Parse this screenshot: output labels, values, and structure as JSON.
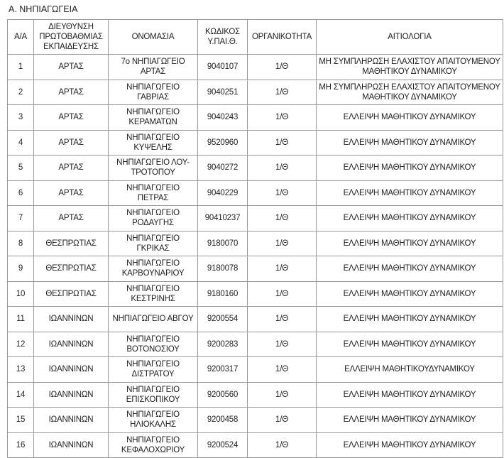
{
  "section_title": "Α. ΝΗΠΙΑΓΩΓΕΙΑ",
  "columns": [
    "Α/Α",
    "ΔΙΕΥΘΥΝΣΗ ΠΡΩΤΟΒΑΘΜΙΑΣ ΕΚΠΑΙΔΕΥΣΗΣ",
    "ΟΝΟΜΑΣΙΑ",
    "ΚΩΔΙΚΟΣ Υ.ΠΑΙ.Θ.",
    "ΟΡΓΑΝΙΚΟΤΗΤΑ",
    "ΑΙΤΙΟΛΟΓΙΑ"
  ],
  "rows": [
    [
      "1",
      "ΑΡΤΑΣ",
      "7ο ΝΗΠΙΑΓΩΓΕΙΟ ΑΡΤΑΣ",
      "9040107",
      "1/Θ",
      "ΜΗ ΣΥΜΠΛΗΡΩΣΗ ΕΛΑΧΙΣΤΟΥ ΑΠΑΙΤΟΥΜΕΝΟΥ ΜΑΘΗΤΙΚΟΥ ΔΥΝΑΜΙΚΟΥ"
    ],
    [
      "2",
      "ΑΡΤΑΣ",
      "ΝΗΠΙΑΓΩΓΕΙΟ ΓΑΒΡΙΑΣ",
      "9040251",
      "1/Θ",
      "ΜΗ ΣΥΜΠΛΗΡΩΣΗ ΕΛΑΧΙΣΤΟΥ ΑΠΑΙΤΟΥΜΕΝΟΥ ΜΑΘΗΤΙΚΟΥ ΔΥΝΑΜΙΚΟΥ"
    ],
    [
      "3",
      "ΑΡΤΑΣ",
      "ΝΗΠΙΑΓΩΓΕΙΟ ΚΕΡΑΜΑΤΩΝ",
      "9040243",
      "1/Θ",
      "ΕΛΛΕΙΨΗ ΜΑΘΗΤΙΚΟΥ ΔΥΝΑΜΙΚΟΥ"
    ],
    [
      "4",
      "ΑΡΤΑΣ",
      "ΝΗΠΙΑΓΩΓΕΙΟ ΚΥΨΕΛΗΣ",
      "9520960",
      "1/Θ",
      "ΕΛΛΕΙΨΗ ΜΑΘΗΤΙΚΟΥ ΔΥΝΑΜΙΚΟΥ"
    ],
    [
      "5",
      "ΑΡΤΑΣ",
      "ΝΗΠΙΑΓΩΓΕΙΟ ΛΟΥ-ΤΡΟΤΟΠΟΥ",
      "9040272",
      "1/Θ",
      "ΕΛΛΕΙΨΗ ΜΑΘΗΤΙΚΟΥ ΔΥΝΑΜΙΚΟΥ"
    ],
    [
      "6",
      "ΑΡΤΑΣ",
      "ΝΗΠΙΑΓΩΓΕΙΟ ΠΕΤΡΑΣ",
      "9040229",
      "1/Θ",
      "ΕΛΛΕΙΨΗ ΜΑΘΗΤΙΚΟΥ ΔΥΝΑΜΙΚΟΥ"
    ],
    [
      "7",
      "ΑΡΤΑΣ",
      "ΝΗΠΙΑΓΩΓΕΙΟ ΡΟΔΑΥΓΗΣ",
      "90410237",
      "1/Θ",
      "ΕΛΛΕΙΨΗ ΜΑΘΗΤΙΚΟΥ ΔΥΝΑΜΙΚΟΥ"
    ],
    [
      "8",
      "ΘΕΣΠΡΩΤΙΑΣ",
      "ΝΗΠΙΑΓΩΓΕΙΟ ΓΚΡΙΚΑΣ",
      "9180070",
      "1/Θ",
      "ΕΛΛΕΙΨΗ ΜΑΘΗΤΙΚΟΥ ΔΥΝΑΜΙΚΟΥ"
    ],
    [
      "9",
      "ΘΕΣΠΡΩΤΙΑΣ",
      "ΝΗΠΙΑΓΩΓΕΙΟ ΚΑΡΒΟΥΝΑΡΙΟΥ",
      "9180078",
      "1/Θ",
      "ΕΛΛΕΙΨΗ ΜΑΘΗΤΙΚΟΥ ΔΥΝΑΜΙΚΟΥ"
    ],
    [
      "10",
      "ΘΕΣΠΡΩΤΙΑΣ",
      "ΝΗΠΙΑΓΩΓΕΙΟ ΚΕΣΤΡΙΝΗΣ",
      "9180160",
      "1/Θ",
      "ΕΛΛΕΙΨΗ ΜΑΘΗΤΙΚΟΥ ΔΥΝΑΜΙΚΟΥ"
    ],
    [
      "11",
      "ΙΩΑΝΝΙΝΩΝ",
      "ΝΗΠΙΑΓΩΓΕΙΟ ΑΒΓΟΥ",
      "9200554",
      "1/Θ",
      "ΕΛΛΕΙΨΗ ΜΑΘΗΤΙΚΟΥ ΔΥΝΑΜΙΚΟΥ"
    ],
    [
      "12",
      "ΙΩΑΝΝΙΝΩΝ",
      "ΝΗΠΙΑΓΩΓΕΙΟ ΒΟΤΟΝΟΣΙΟΥ",
      "9200283",
      "1/Θ",
      "ΕΛΛΕΙΨΗ ΜΑΘΗΤΙΚΟΥ ΔΥΝΑΜΙΚΟΥ"
    ],
    [
      "13",
      "ΙΩΑΝΝΙΝΩΝ",
      "ΝΗΠΙΑΓΩΓΕΙΟ ΔΙΣΤΡΑΤΟΥ",
      "9200317",
      "1/Θ",
      "ΕΛΛΕΙΨΗ ΜΑΘΗΤΙΚΟΥΔΥΝΑΜΙΚΟΥ"
    ],
    [
      "14",
      "ΙΩΑΝΝΙΝΩΝ",
      "ΝΗΠΙΑΓΩΓΕΙΟ ΕΠΙΣΚΟΠΙΚΟΥ",
      "9200560",
      "1/Θ",
      "ΕΛΛΕΙΨΗ ΜΑΘΗΤΙΚΟΥ ΔΥΝΑΜΙΚΟΥ"
    ],
    [
      "15",
      "ΙΩΑΝΝΙΝΩΝ",
      "ΝΗΠΙΑΓΩΓΕΙΟ ΗΛΙΟΚΑΛΗΣ",
      "9200458",
      "1/Θ",
      "ΕΛΛΕΙΨΗ ΜΑΘΗΤΙΚΟΥ ΔΥΝΑΜΙΚΟΥ"
    ],
    [
      "16",
      "ΙΩΑΝΝΙΝΩΝ",
      "ΝΗΠΙΑΓΩΓΕΙΟ ΚΕΦΑΛΟΧΩΡΙΟΥ",
      "9200524",
      "1/Θ",
      "ΕΛΛΕΙΨΗ ΜΑΘΗΤΙΚΟΥ ΔΥΝΑΜΙΚΟΥ"
    ]
  ]
}
